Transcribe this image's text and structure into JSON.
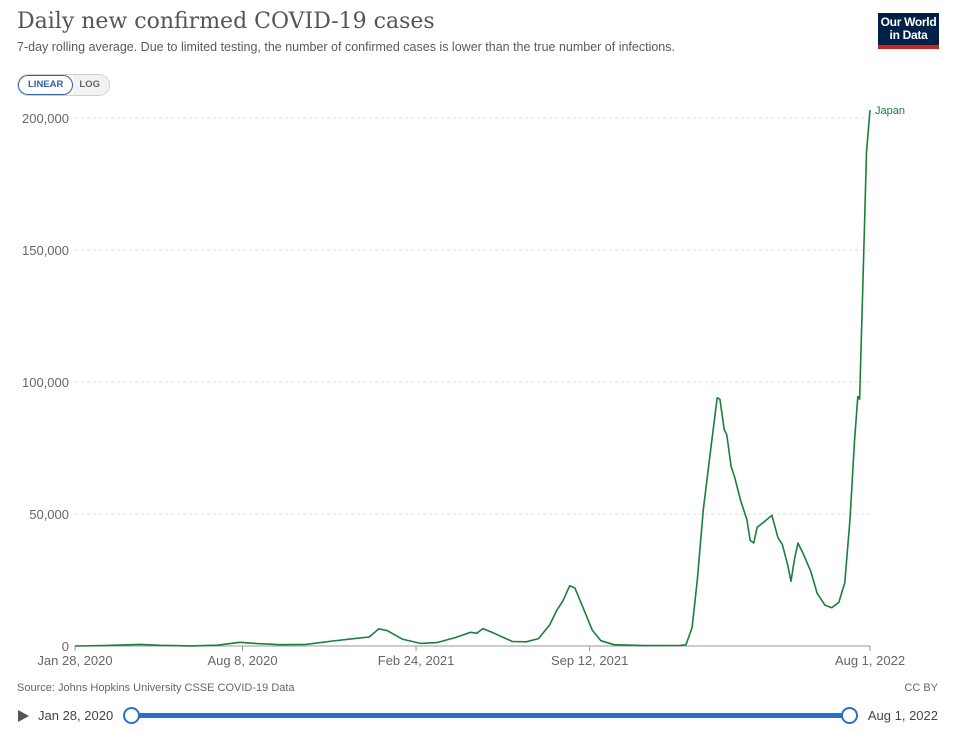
{
  "header": {
    "title": "Daily new confirmed COVID-19 cases",
    "subtitle": "7-day rolling average. Due to limited testing, the number of confirmed cases is lower than the true number of infections.",
    "logo_line1": "Our World",
    "logo_line2": "in Data"
  },
  "controls": {
    "linear_label": "LINEAR",
    "log_label": "LOG",
    "selected": "LINEAR"
  },
  "footer": {
    "source": "Source: Johns Hopkins University CSSE COVID-19 Data",
    "license": "CC BY"
  },
  "timeline": {
    "start_label": "Jan 28, 2020",
    "end_label": "Aug 1, 2022"
  },
  "colors": {
    "series": "#1a7f3c",
    "grid": "#dddddd",
    "accent": "#2b6fc9",
    "logo_bg": "#002147",
    "logo_stripe": "#ce261e"
  },
  "chart_data": {
    "type": "line",
    "x_is_date": true,
    "xlim": [
      "2020-01-28",
      "2022-08-01"
    ],
    "ylim": [
      0,
      200000
    ],
    "y_ticks": [
      0,
      50000,
      100000,
      150000,
      200000
    ],
    "y_tick_labels": [
      "0",
      "50,000",
      "100,000",
      "150,000",
      "200,000"
    ],
    "x_ticks": [
      "2020-01-28",
      "2020-08-08",
      "2021-02-24",
      "2021-09-12",
      "2022-08-01"
    ],
    "x_tick_labels": [
      "Jan 28, 2020",
      "Aug 8, 2020",
      "Feb 24, 2021",
      "Sep 12, 2021",
      "Aug 1, 2022"
    ],
    "grid": "horizontal dashed",
    "series": [
      {
        "name": "Japan",
        "color": "#1a7f3c",
        "points": [
          [
            "2020-01-28",
            0
          ],
          [
            "2020-03-01",
            150
          ],
          [
            "2020-04-12",
            600
          ],
          [
            "2020-05-05",
            250
          ],
          [
            "2020-06-10",
            50
          ],
          [
            "2020-07-10",
            300
          ],
          [
            "2020-08-05",
            1400
          ],
          [
            "2020-08-25",
            900
          ],
          [
            "2020-09-20",
            500
          ],
          [
            "2020-10-20",
            600
          ],
          [
            "2020-11-20",
            1900
          ],
          [
            "2020-12-15",
            2800
          ],
          [
            "2021-01-01",
            3400
          ],
          [
            "2021-01-12",
            6500
          ],
          [
            "2021-01-22",
            5800
          ],
          [
            "2021-02-08",
            2600
          ],
          [
            "2021-03-01",
            1000
          ],
          [
            "2021-03-20",
            1300
          ],
          [
            "2021-04-10",
            3200
          ],
          [
            "2021-04-28",
            5200
          ],
          [
            "2021-05-05",
            4800
          ],
          [
            "2021-05-12",
            6600
          ],
          [
            "2021-05-25",
            4800
          ],
          [
            "2021-06-15",
            1700
          ],
          [
            "2021-07-01",
            1600
          ],
          [
            "2021-07-15",
            2800
          ],
          [
            "2021-07-28",
            8000
          ],
          [
            "2021-08-05",
            13500
          ],
          [
            "2021-08-12",
            17000
          ],
          [
            "2021-08-20",
            22800
          ],
          [
            "2021-08-26",
            22000
          ],
          [
            "2021-09-05",
            14000
          ],
          [
            "2021-09-15",
            6000
          ],
          [
            "2021-09-25",
            2000
          ],
          [
            "2021-10-10",
            500
          ],
          [
            "2021-11-15",
            150
          ],
          [
            "2021-12-25",
            200
          ],
          [
            "2022-01-01",
            500
          ],
          [
            "2022-01-08",
            7000
          ],
          [
            "2022-01-14",
            25000
          ],
          [
            "2022-01-21",
            52000
          ],
          [
            "2022-01-30",
            76000
          ],
          [
            "2022-02-06",
            94000
          ],
          [
            "2022-02-09",
            93500
          ],
          [
            "2022-02-14",
            82000
          ],
          [
            "2022-02-17",
            80000
          ],
          [
            "2022-02-22",
            68000
          ],
          [
            "2022-02-26",
            64000
          ],
          [
            "2022-03-05",
            55000
          ],
          [
            "2022-03-12",
            48000
          ],
          [
            "2022-03-16",
            40000
          ],
          [
            "2022-03-20",
            39000
          ],
          [
            "2022-03-24",
            45000
          ],
          [
            "2022-04-01",
            47000
          ],
          [
            "2022-04-10",
            49500
          ],
          [
            "2022-04-17",
            41000
          ],
          [
            "2022-04-22",
            38500
          ],
          [
            "2022-04-28",
            31000
          ],
          [
            "2022-05-02",
            24500
          ],
          [
            "2022-05-06",
            33000
          ],
          [
            "2022-05-10",
            39000
          ],
          [
            "2022-05-16",
            35000
          ],
          [
            "2022-05-25",
            28000
          ],
          [
            "2022-06-01",
            20000
          ],
          [
            "2022-06-10",
            15500
          ],
          [
            "2022-06-18",
            14500
          ],
          [
            "2022-06-26",
            16500
          ],
          [
            "2022-07-03",
            24000
          ],
          [
            "2022-07-09",
            48000
          ],
          [
            "2022-07-14",
            77000
          ],
          [
            "2022-07-18",
            94500
          ],
          [
            "2022-07-20",
            93500
          ],
          [
            "2022-07-24",
            140000
          ],
          [
            "2022-07-28",
            187000
          ],
          [
            "2022-08-01",
            203000
          ]
        ]
      }
    ]
  }
}
